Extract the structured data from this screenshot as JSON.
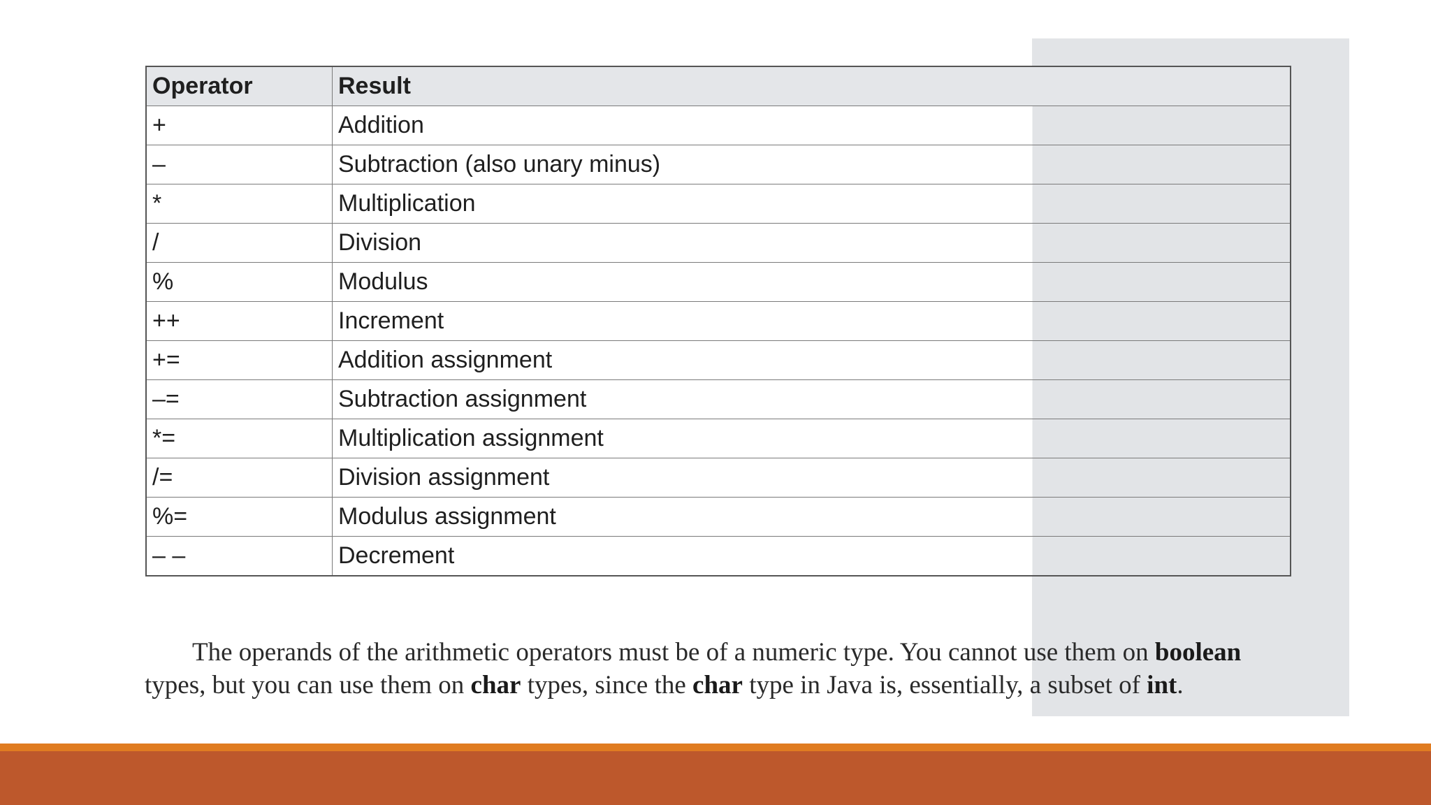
{
  "table": {
    "headers": [
      "Operator",
      "Result"
    ],
    "rows": [
      {
        "operator": "+",
        "result": "Addition"
      },
      {
        "operator": "–",
        "result": "Subtraction (also unary minus)"
      },
      {
        "operator": "*",
        "result": "Multiplication"
      },
      {
        "operator": "/",
        "result": "Division"
      },
      {
        "operator": "%",
        "result": "Modulus"
      },
      {
        "operator": "++",
        "result": "Increment"
      },
      {
        "operator": "+=",
        "result": "Addition assignment"
      },
      {
        "operator": "–=",
        "result": "Subtraction assignment"
      },
      {
        "operator": "*=",
        "result": "Multiplication assignment"
      },
      {
        "operator": "/=",
        "result": "Division assignment"
      },
      {
        "operator": "%=",
        "result": "Modulus assignment"
      },
      {
        "operator": "– –",
        "result": "Decrement"
      }
    ]
  },
  "paragraph": {
    "t1": "The operands of the arithmetic operators must be of a numeric type. You cannot use them on ",
    "b1": "boolean",
    "t2": " types, but you can use them on ",
    "b2": "char",
    "t3": " types, since the ",
    "b3": "char",
    "t4": " type in Java is, essentially, a subset of ",
    "b4": "int",
    "t5": "."
  },
  "colors": {
    "accent_orange": "#e07c21",
    "footer_rust": "#bd582c",
    "panel_gray": "#e2e4e7"
  }
}
